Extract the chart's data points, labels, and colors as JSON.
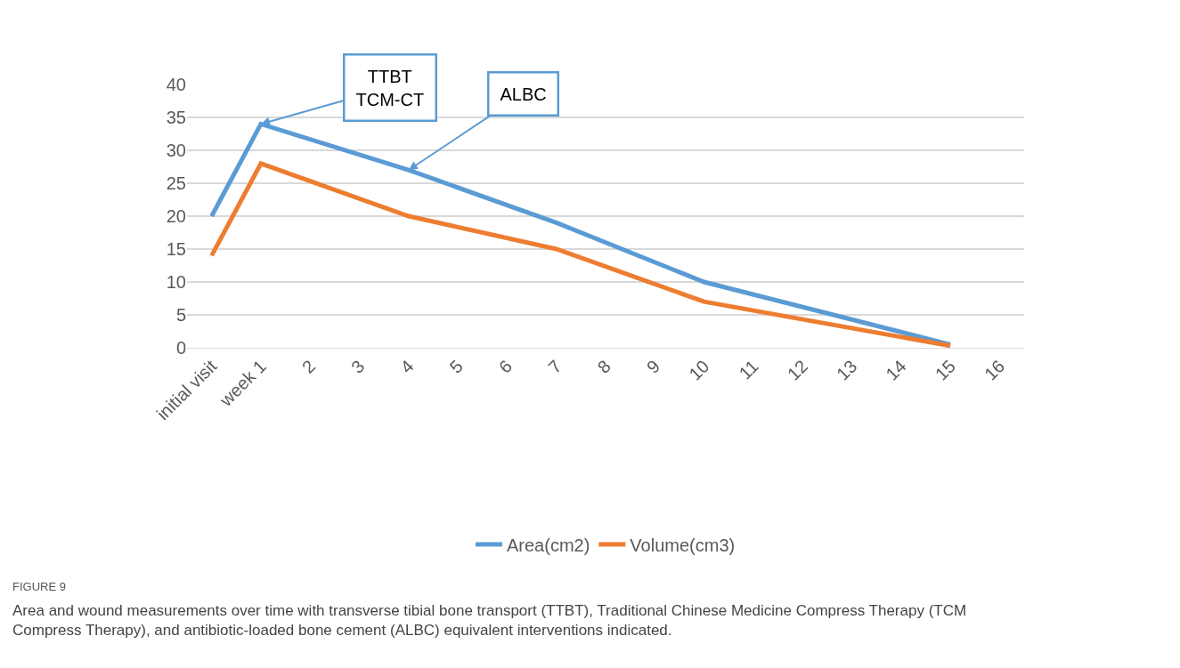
{
  "chart_data": {
    "type": "line",
    "categories": [
      "initial visit",
      "week 1",
      "2",
      "3",
      "4",
      "5",
      "6",
      "7",
      "8",
      "9",
      "10",
      "11",
      "12",
      "13",
      "14",
      "15",
      "16"
    ],
    "series": [
      {
        "name": "Area(cm2)",
        "color": "#5b9bd5",
        "values": [
          20,
          34,
          null,
          null,
          27,
          null,
          null,
          19,
          null,
          null,
          10,
          null,
          null,
          null,
          null,
          0.5,
          null
        ]
      },
      {
        "name": "Volume(cm3)",
        "color": "#ed7d31",
        "values": [
          14,
          28,
          null,
          null,
          20,
          null,
          null,
          15,
          null,
          null,
          7,
          null,
          null,
          null,
          null,
          0.3,
          null
        ]
      }
    ],
    "ylim": [
      0,
      40
    ],
    "yticks": [
      0,
      5,
      10,
      15,
      20,
      25,
      30,
      35,
      40
    ],
    "grid": "y",
    "legend": "bottom",
    "marker": "none",
    "line_style": "solid",
    "annotations": [
      {
        "text": "TTBT\nTCM-CT",
        "x": "week 1",
        "y": 34
      },
      {
        "text": "ALBC",
        "x": "4",
        "y": 27
      },
      "FIGURE 9",
      "Area and wound measurements over time with transverse tibial bone transport (TTBT), Traditional Chinese Medicine Compress Therapy (TCM Compress Therapy), and antibiotic-loaded bone cement (ALBC) equivalent interventions indicated."
    ]
  }
}
